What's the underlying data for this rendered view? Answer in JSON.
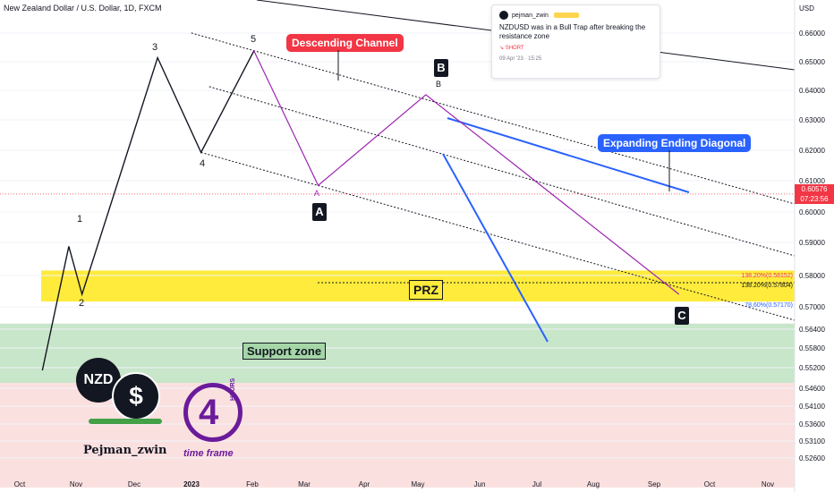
{
  "header": {
    "pair": "New Zealand Dollar / U.S. Dollar, 1D, FXCM",
    "currency": "USD"
  },
  "price_tag": {
    "value": "0.60576",
    "countdown": "07:23:56",
    "color": "#f23645"
  },
  "annotations": {
    "descending_channel": "Descending Channel",
    "expanding_diagonal": "Expanding Ending Diagonal",
    "prz": "PRZ",
    "support_zone": "Support zone",
    "point_A": "A",
    "point_B": "B",
    "point_C": "C",
    "small_A": "A",
    "small_B": "B",
    "wave_1": "1",
    "wave_2": "2",
    "wave_3": "3",
    "wave_4": "4",
    "wave_5": "5"
  },
  "fib_levels": [
    {
      "label": "138.20%(0.58152)",
      "color": "#f23645"
    },
    {
      "label": "138.20%(0.57804)",
      "color": "#131722"
    },
    {
      "label": "78.60%(0.57170)",
      "color": "#2962ff"
    }
  ],
  "idea_card": {
    "author": "pejman_zwin",
    "text": "NZDUSD was in a Bull Trap after breaking the resistance zone",
    "signal": "SHORT",
    "timestamp": "09 Apr '23 · 15:25"
  },
  "logo": {
    "brand": "NZD",
    "name": "Pejman_zwin",
    "timeframe_number": "4",
    "timeframe_unit": "HOURS",
    "timeframe_caption": "time frame"
  },
  "colors": {
    "up_candle": "#089981",
    "down_candle": "#f23645",
    "prz_fill": "#ffeb3b",
    "support_fill": "#c8e6c9",
    "lower_fill": "#fbe0e0",
    "channel_line": "#131722",
    "diagonal_line": "#2962ff",
    "wave_line": "#9c27b0"
  },
  "chart_data": {
    "type": "candlestick",
    "title": "New Zealand Dollar / U.S. Dollar, 1D, FXCM",
    "ylabel": "USD",
    "ylim": [
      0.5205,
      0.6685
    ],
    "y_ticks": [
      "0.66000",
      "0.65000",
      "0.64000",
      "0.63000",
      "0.62000",
      "0.61000",
      "0.60000",
      "0.59000",
      "0.58000",
      "0.57000",
      "0.56400",
      "0.55800",
      "0.55200",
      "0.54600",
      "0.54100",
      "0.53600",
      "0.53100",
      "0.52600"
    ],
    "x_ticks": [
      "Oct",
      "Nov",
      "Dec",
      "2023",
      "Feb",
      "Mar",
      "Apr",
      "May",
      "Jun",
      "Jul",
      "Aug",
      "Sep",
      "Oct",
      "Nov"
    ],
    "last_price": 0.60576,
    "zones": [
      {
        "name": "PRZ",
        "from": 0.5717,
        "to": 0.5815
      },
      {
        "name": "Support zone",
        "from": 0.5475,
        "to": 0.5655
      }
    ],
    "waves": [
      {
        "label": "2",
        "date": "2022-10-13",
        "price": 0.5512
      },
      {
        "label": "1",
        "date": "2022-10-27",
        "price": 0.5888
      },
      {
        "label": "2",
        "date": "2022-11-03",
        "price": 0.574
      },
      {
        "label": "3",
        "date": "2022-12-13",
        "price": 0.6514
      },
      {
        "label": "4",
        "date": "2023-01-05",
        "price": 0.6193
      },
      {
        "label": "5",
        "date": "2023-02-02",
        "price": 0.6538
      },
      {
        "label": "A",
        "date": "2023-03-08",
        "price": 0.6085
      },
      {
        "label": "B",
        "date": "2023-05-04",
        "price": 0.6385
      },
      {
        "label": "C",
        "date": "2023-09-15",
        "price": 0.574
      }
    ],
    "ohlc": []
  }
}
